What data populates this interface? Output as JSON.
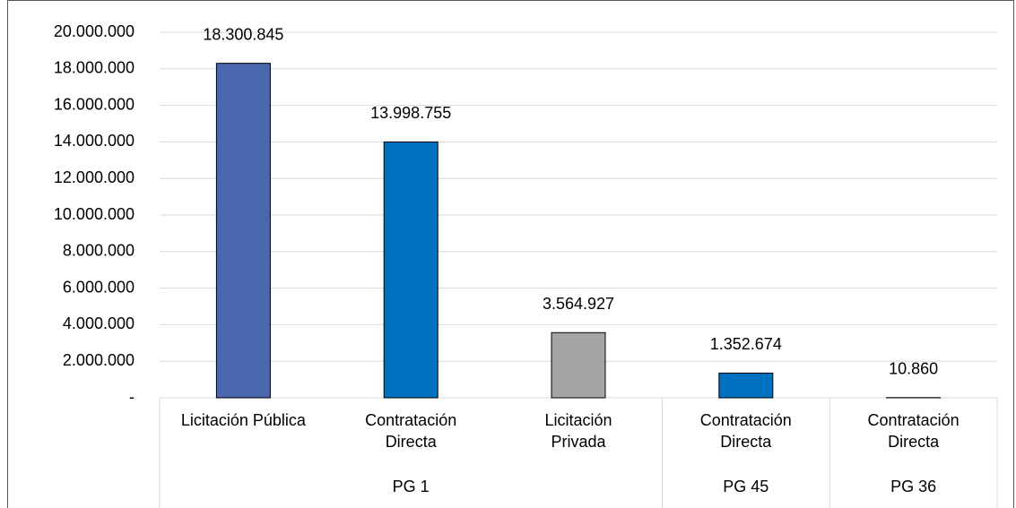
{
  "chart_data": {
    "type": "bar",
    "categories": [
      "Licitación Pública",
      "Contratación\nDirecta",
      "Licitación\nPrivada",
      "Contratación\nDirecta",
      "Contratación\nDirecta"
    ],
    "groups": [
      {
        "label": "PG 1",
        "span": 3
      },
      {
        "label": "PG 45",
        "span": 1
      },
      {
        "label": "PG 36",
        "span": 1
      }
    ],
    "values": [
      18300845,
      13998755,
      3564927,
      1352674,
      10860
    ],
    "value_labels": [
      "18.300.845",
      "13.998.755",
      "3.564.927",
      "1.352.674",
      "10.860"
    ],
    "colors": [
      "#4a66ac",
      "#0070c0",
      "#a5a5a5",
      "#0070c0",
      "#0070c0"
    ],
    "ylim": [
      0,
      20000000
    ],
    "yticks": [
      {
        "value": 0,
        "label": "-"
      },
      {
        "value": 2000000,
        "label": "2.000.000"
      },
      {
        "value": 4000000,
        "label": "4.000.000"
      },
      {
        "value": 6000000,
        "label": "6.000.000"
      },
      {
        "value": 8000000,
        "label": "8.000.000"
      },
      {
        "value": 10000000,
        "label": "10.000.000"
      },
      {
        "value": 12000000,
        "label": "12.000.000"
      },
      {
        "value": 14000000,
        "label": "14.000.000"
      },
      {
        "value": 16000000,
        "label": "16.000.000"
      },
      {
        "value": 18000000,
        "label": "18.000.000"
      },
      {
        "value": 20000000,
        "label": "20.000.000"
      }
    ],
    "grid": true
  }
}
